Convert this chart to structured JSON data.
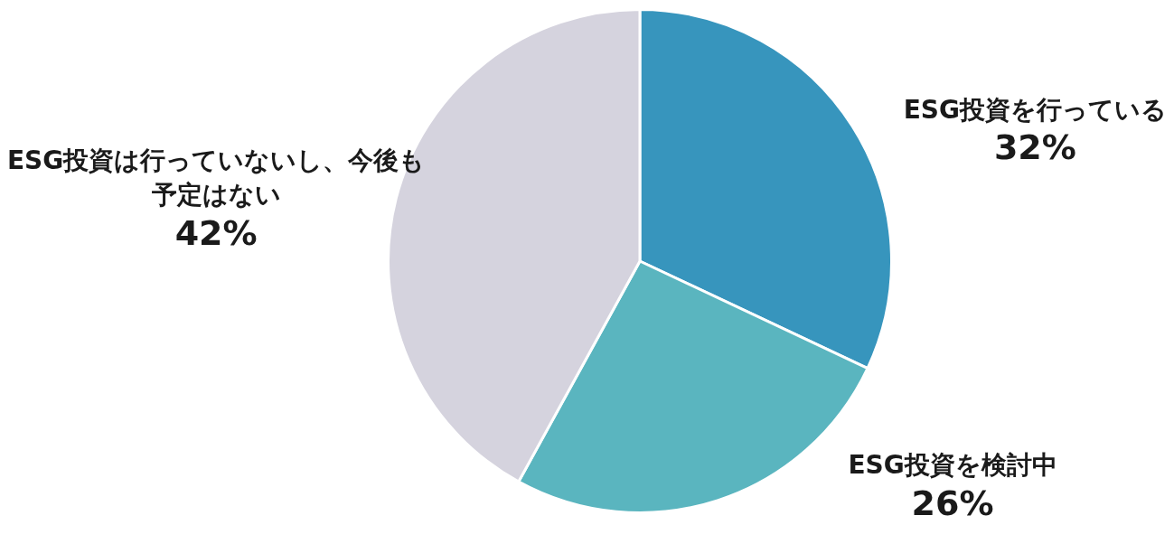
{
  "chart_data": {
    "type": "pie",
    "categories": [
      "ESG投資を行っている",
      "ESG投資を検討中",
      "ESG投資は行っていないし、今後も予定はない"
    ],
    "values": [
      32,
      26,
      42
    ],
    "colors": [
      "#3795bd",
      "#5ab5bf",
      "#d5d3de"
    ],
    "value_labels": [
      "32%",
      "26%",
      "42%"
    ],
    "legend": false
  }
}
